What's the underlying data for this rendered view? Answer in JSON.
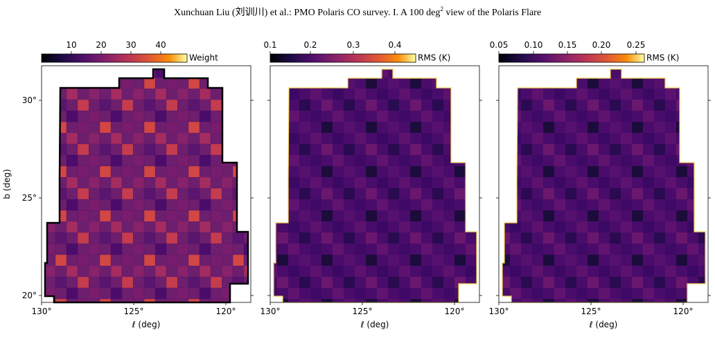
{
  "header": {
    "text": "Xunchuan Liu (刘训川)  et al.: PMO Polaris CO survey. I. A 100 deg",
    "sup": "2",
    "tail": " view of the Polaris Flare"
  },
  "axes": {
    "xlabel": "ℓ (deg)",
    "ylabel": "b (deg)",
    "xticks": [
      "130°",
      "125°",
      "120°"
    ],
    "yticks": [
      "30°",
      "25°",
      "20°"
    ]
  },
  "panels": [
    {
      "colorbar": {
        "label": "Weight",
        "ticks": [
          "10",
          "20",
          "30",
          "40"
        ]
      }
    },
    {
      "colorbar": {
        "label": "RMS (K)",
        "ticks": [
          "0.1",
          "0.2",
          "0.3",
          "0.4"
        ]
      }
    },
    {
      "colorbar": {
        "label": "RMS (K)",
        "ticks": [
          "0.05",
          "0.10",
          "0.15",
          "0.20",
          "0.25"
        ]
      }
    }
  ]
}
